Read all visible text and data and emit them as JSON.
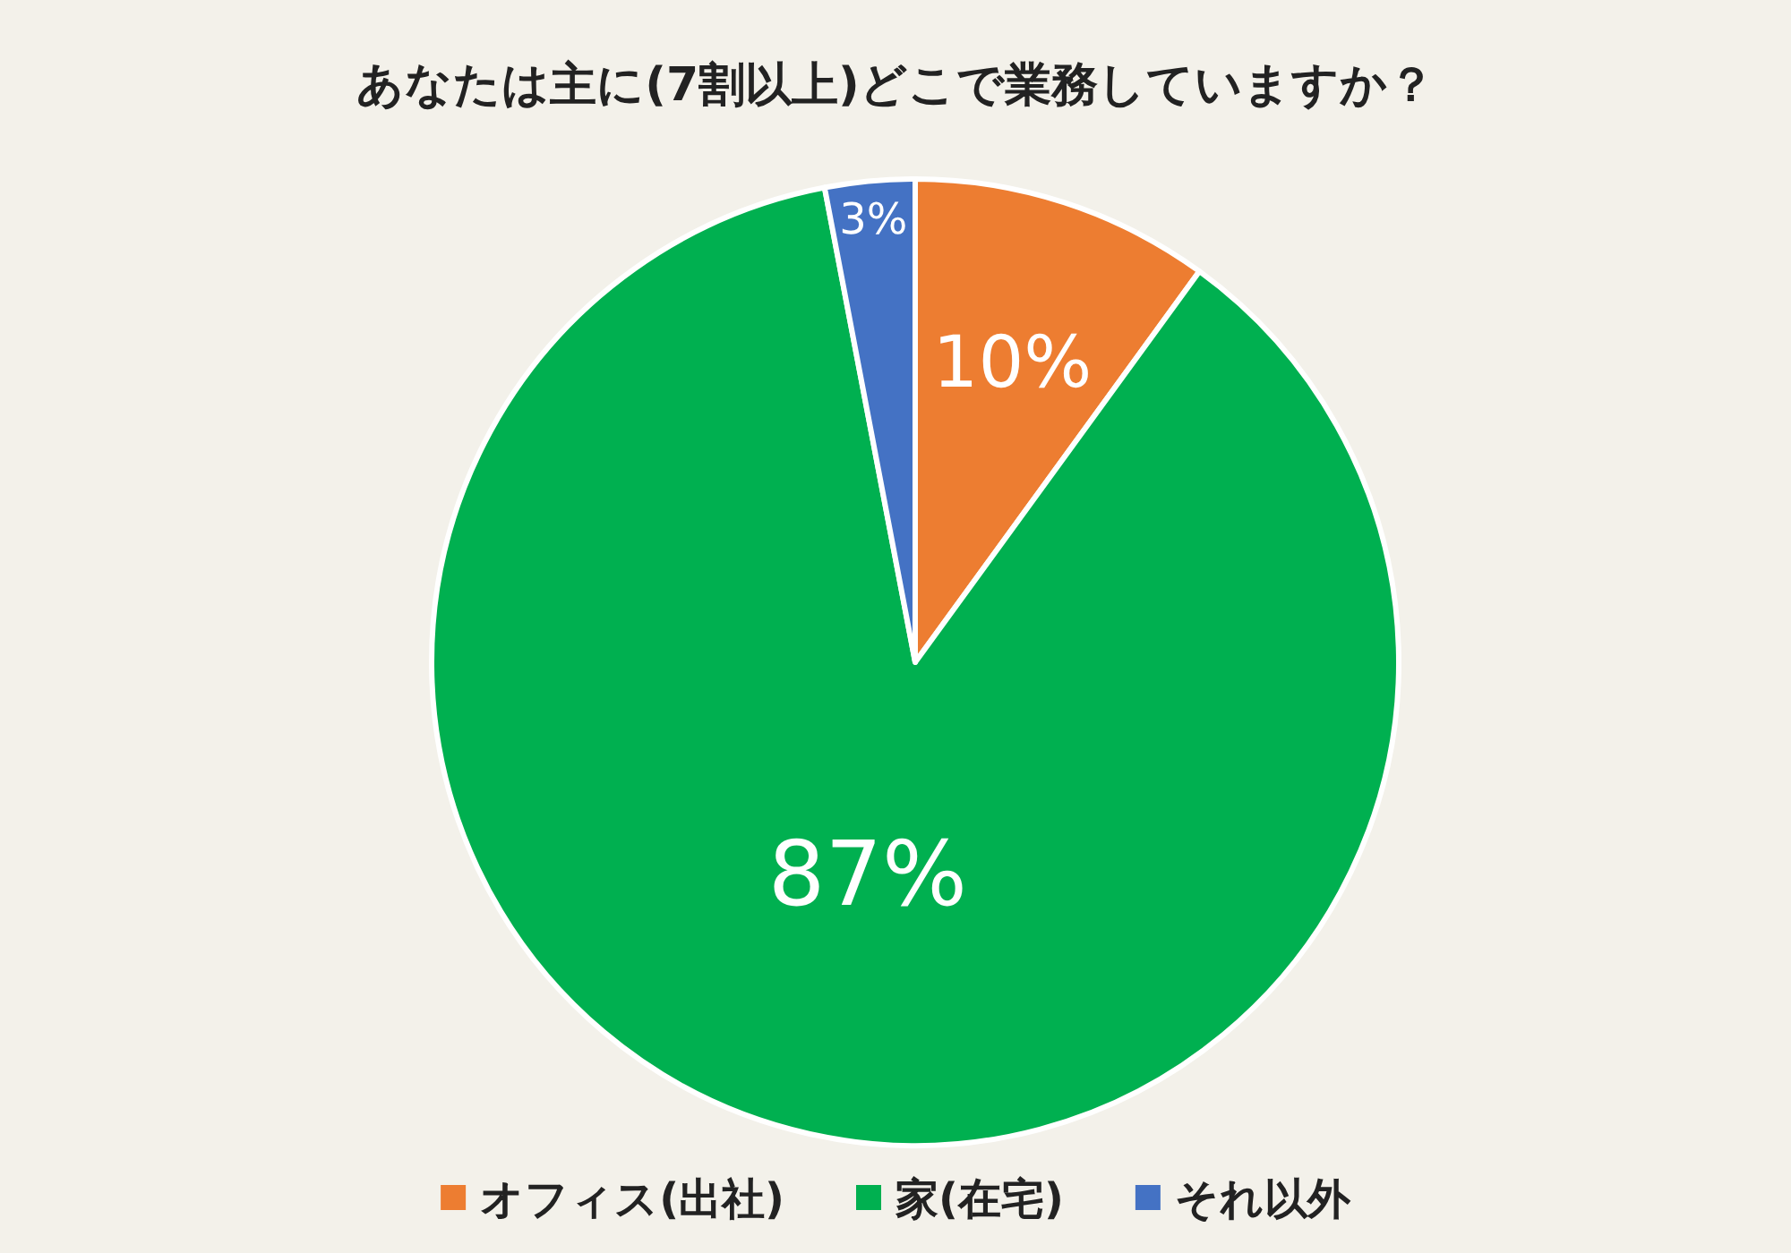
{
  "chart_data": {
    "type": "pie",
    "title": "あなたは主に(7割以上)どこで業務していますか？",
    "categories": [
      "オフィス(出社)",
      "家(在宅)",
      "それ以外"
    ],
    "values": [
      10,
      87,
      3
    ],
    "colors": [
      "#ed7d31",
      "#00b050",
      "#4472c4"
    ],
    "value_labels": [
      "10%",
      "87%",
      "3%"
    ],
    "legend": "bottom"
  }
}
